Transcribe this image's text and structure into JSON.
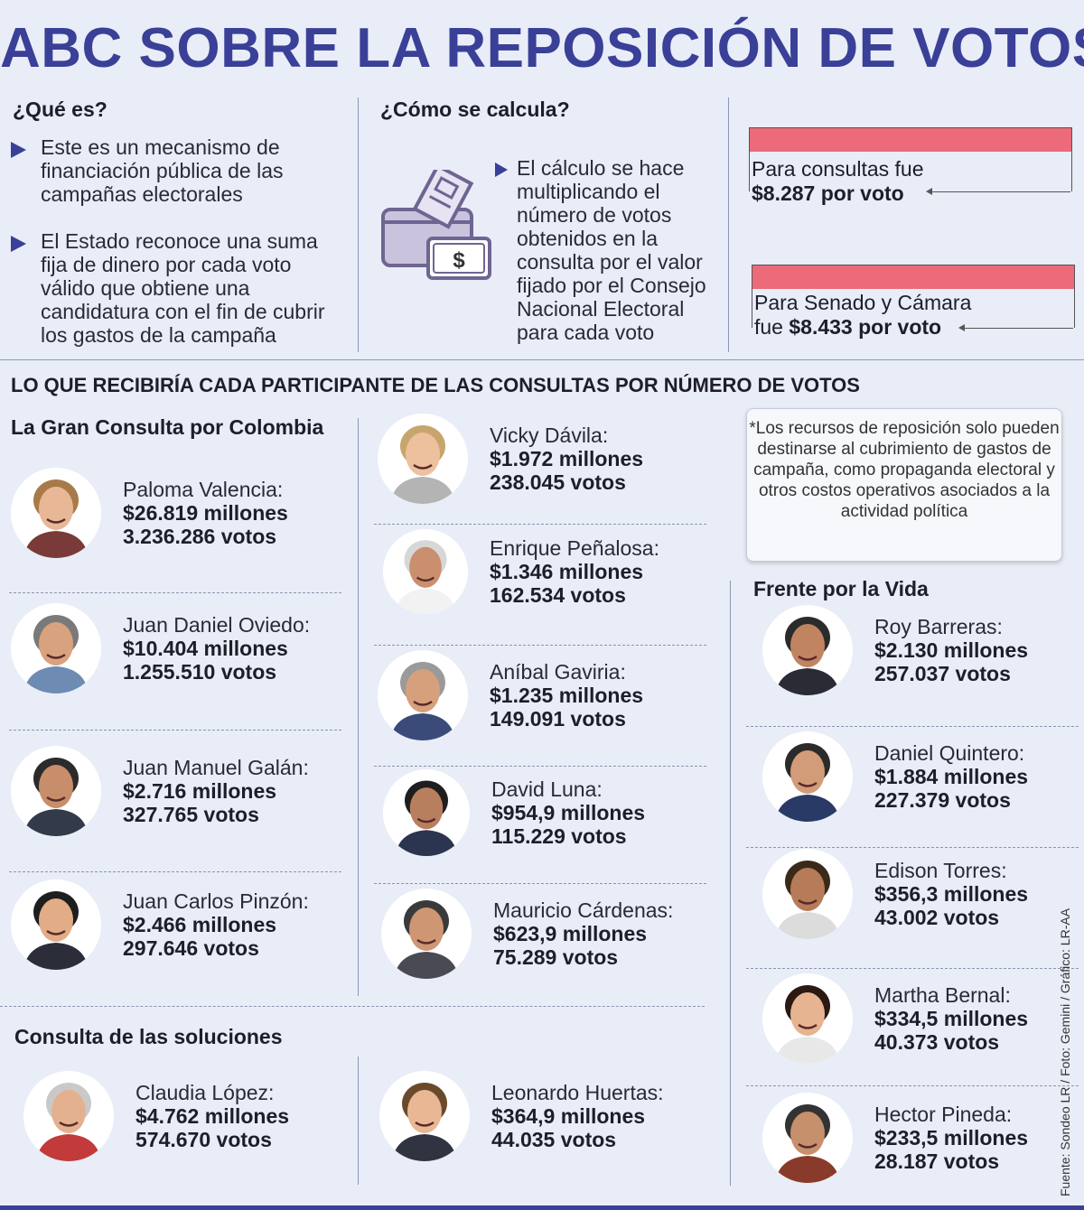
{
  "title": "ABC SOBRE LA REPOSICIÓN DE VOTOS",
  "que_es": {
    "heading": "¿Qué es?",
    "bullets": [
      "Este es un mecanismo de financiación pública de las campañas electorales",
      "El Estado reconoce una suma fija de dinero por cada voto válido que obtiene una candidatura con el fin de cubrir los gastos de la campaña"
    ]
  },
  "como": {
    "heading": "¿Cómo se calcula?",
    "bullet": "El cálculo se hace multiplicando el número de votos obtenidos en la consulta por el valor fijado por el Consejo Nacional Electoral para cada voto"
  },
  "rates": [
    {
      "label": "Para consultas fue",
      "value": "$8.287 por voto"
    },
    {
      "label": "Para Senado y Cámara",
      "prefix": "fue",
      "value": "$8.433 por voto"
    }
  ],
  "section_title": "LO QUE RECIBIRÍA CADA PARTICIPANTE DE LAS CONSULTAS POR NÚMERO DE VOTOS",
  "groups": {
    "gran": "La Gran Consulta por Colombia",
    "soluciones": "Consulta de las soluciones",
    "frente": "Frente por la Vida"
  },
  "note": "*Los recursos de reposición solo pueden destinarse al cubrimiento de gastos de campaña, como propaganda electoral y otros costos operativos asociados a la actividad política",
  "people": [
    {
      "name": "Paloma Valencia:",
      "amount": "$26.819 millones",
      "votes": "3.236.286 votos"
    },
    {
      "name": "Juan Daniel Oviedo:",
      "amount": "$10.404 millones",
      "votes": "1.255.510 votos"
    },
    {
      "name": "Juan Manuel Galán:",
      "amount": "$2.716 millones",
      "votes": "327.765 votos"
    },
    {
      "name": "Juan Carlos Pinzón:",
      "amount": "$2.466 millones",
      "votes": "297.646 votos"
    },
    {
      "name": "Vicky Dávila:",
      "amount": "$1.972 millones",
      "votes": "238.045 votos"
    },
    {
      "name": "Enrique Peñalosa:",
      "amount": "$1.346 millones",
      "votes": "162.534 votos"
    },
    {
      "name": "Aníbal Gaviria:",
      "amount": "$1.235 millones",
      "votes": "149.091 votos"
    },
    {
      "name": "David Luna:",
      "amount": "$954,9 millones",
      "votes": "115.229 votos"
    },
    {
      "name": "Mauricio Cárdenas:",
      "amount": "$623,9 millones",
      "votes": "75.289 votos"
    },
    {
      "name": "Claudia López:",
      "amount": "$4.762 millones",
      "votes": "574.670 votos"
    },
    {
      "name": "Leonardo Huertas:",
      "amount": "$364,9 millones",
      "votes": "44.035 votos"
    },
    {
      "name": "Roy Barreras:",
      "amount": "$2.130 millones",
      "votes": "257.037 votos"
    },
    {
      "name": "Daniel Quintero:",
      "amount": "$1.884 millones",
      "votes": "227.379 votos"
    },
    {
      "name": "Edison Torres:",
      "amount": "$356,3 millones",
      "votes": "43.002 votos"
    },
    {
      "name": "Martha Bernal:",
      "amount": "$334,5 millones",
      "votes": "40.373 votos"
    },
    {
      "name": "Hector Pineda:",
      "amount": "$233,5 millones",
      "votes": "28.187 votos"
    }
  ],
  "credit": "Fuente: Sondeo LR / Foto: Gemini / Gráfico: LR-AA",
  "colors": {
    "accent": "#3a3f97",
    "bar": "#ec6a7a",
    "background": "#e8edf7"
  },
  "icons": {
    "ballot": "ballot-money-icon",
    "bullet": "triangle-bullet-icon"
  }
}
